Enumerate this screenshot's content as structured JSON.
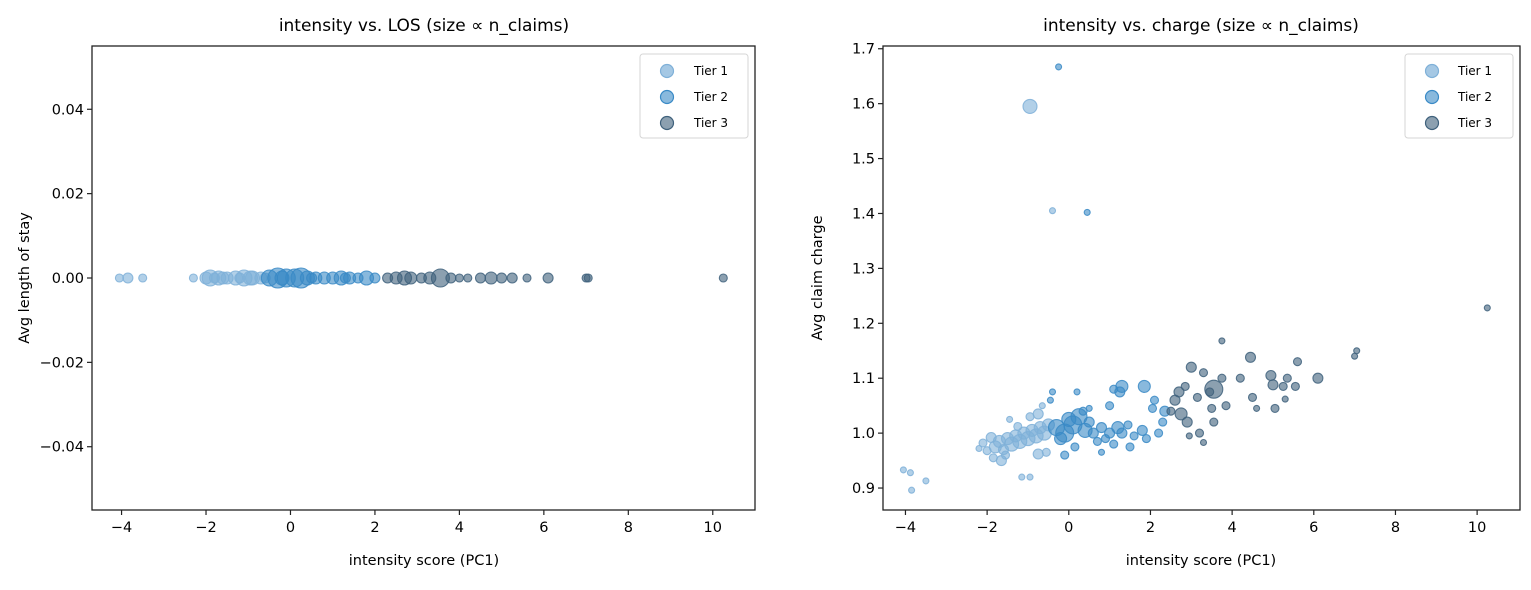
{
  "figure": {
    "colors": {
      "tier1": "#7fb0d8",
      "tier2": "#3a8ac6",
      "tier3": "#3f617c"
    }
  },
  "left": {
    "title": "intensity vs. LOS (size ∝ n_claims)",
    "xlabel": "intensity score (PC1)",
    "ylabel": "Avg length of stay",
    "xticks": [
      "−4",
      "−2",
      "0",
      "2",
      "4",
      "6",
      "8",
      "10"
    ],
    "yticks": [
      "0.04",
      "0.02",
      "0.00",
      "−0.02",
      "−0.04"
    ],
    "legend": [
      "Tier 1",
      "Tier 2",
      "Tier 3"
    ]
  },
  "right": {
    "title": "intensity vs. charge (size ∝ n_claims)",
    "xlabel": "intensity score (PC1)",
    "ylabel": "Avg claim charge",
    "xticks": [
      "−4",
      "−2",
      "0",
      "2",
      "4",
      "6",
      "8",
      "10"
    ],
    "yticks": [
      "1.7",
      "1.6",
      "1.5",
      "1.4",
      "1.3",
      "1.2",
      "1.1",
      "1.0",
      "0.9"
    ],
    "legend": [
      "Tier 1",
      "Tier 2",
      "Tier 3"
    ]
  },
  "chart_data": [
    {
      "type": "scatter",
      "title": "intensity vs. LOS (size ∝ n_claims)",
      "xlabel": "intensity score (PC1)",
      "ylabel": "Avg length of stay",
      "xlim": [
        -4.7,
        11.0
      ],
      "ylim": [
        -0.055,
        0.055
      ],
      "xticks": [
        -4,
        -2,
        0,
        2,
        4,
        6,
        8,
        10
      ],
      "yticks": [
        -0.04,
        -0.02,
        0.0,
        0.02,
        0.04
      ],
      "grid": false,
      "legend_position": "upper right",
      "size_encoding": "n_claims",
      "series": [
        {
          "name": "Tier 1",
          "color": "#7fb0d8",
          "points": [
            [
              -4.05,
              0,
              4
            ],
            [
              -3.85,
              0,
              5
            ],
            [
              -3.5,
              0,
              4
            ],
            [
              -2.3,
              0,
              4
            ],
            [
              -2.0,
              0,
              6
            ],
            [
              -1.9,
              0,
              8
            ],
            [
              -1.7,
              0,
              7
            ],
            [
              -1.5,
              0,
              6
            ],
            [
              -1.3,
              0,
              7
            ],
            [
              -1.1,
              0,
              8
            ],
            [
              -0.9,
              0,
              7
            ],
            [
              -0.7,
              0,
              6
            ],
            [
              -1.8,
              0,
              5
            ],
            [
              -1.6,
              0,
              6
            ],
            [
              -1.2,
              0,
              5
            ],
            [
              -0.95,
              0,
              7
            ],
            [
              -0.6,
              0,
              5
            ]
          ]
        },
        {
          "name": "Tier 2",
          "color": "#3a8ac6",
          "points": [
            [
              -0.5,
              0,
              8
            ],
            [
              -0.3,
              0,
              10
            ],
            [
              -0.1,
              0,
              9
            ],
            [
              0.1,
              0,
              9
            ],
            [
              0.25,
              0,
              10
            ],
            [
              0.4,
              0,
              7
            ],
            [
              0.6,
              0,
              6
            ],
            [
              0.8,
              0,
              6
            ],
            [
              1.0,
              0,
              6
            ],
            [
              1.2,
              0,
              7
            ],
            [
              1.4,
              0,
              6
            ],
            [
              1.6,
              0,
              5
            ],
            [
              1.8,
              0,
              7
            ],
            [
              2.0,
              0,
              5
            ],
            [
              -0.2,
              0,
              7
            ],
            [
              0.5,
              0,
              5
            ],
            [
              1.3,
              0,
              5
            ]
          ]
        },
        {
          "name": "Tier 3",
          "color": "#3f617c",
          "points": [
            [
              2.3,
              0,
              5
            ],
            [
              2.5,
              0,
              6
            ],
            [
              2.7,
              0,
              7
            ],
            [
              2.85,
              0,
              6
            ],
            [
              3.1,
              0,
              5
            ],
            [
              3.3,
              0,
              6
            ],
            [
              3.55,
              0,
              9
            ],
            [
              3.8,
              0,
              5
            ],
            [
              4.0,
              0,
              4
            ],
            [
              4.2,
              0,
              4
            ],
            [
              4.5,
              0,
              5
            ],
            [
              4.75,
              0,
              6
            ],
            [
              5.0,
              0,
              5
            ],
            [
              5.25,
              0,
              5
            ],
            [
              5.6,
              0,
              4
            ],
            [
              6.1,
              0,
              5
            ],
            [
              7.0,
              0,
              4
            ],
            [
              7.05,
              0,
              4
            ],
            [
              10.25,
              0,
              4
            ]
          ]
        }
      ]
    },
    {
      "type": "scatter",
      "title": "intensity vs. charge (size ∝ n_claims)",
      "xlabel": "intensity score (PC1)",
      "ylabel": "Avg claim charge",
      "xlim": [
        -4.55,
        11.05
      ],
      "ylim": [
        0.86,
        1.705
      ],
      "xticks": [
        -4,
        -2,
        0,
        2,
        4,
        6,
        8,
        10
      ],
      "yticks": [
        0.9,
        1.0,
        1.1,
        1.2,
        1.3,
        1.4,
        1.5,
        1.6,
        1.7
      ],
      "grid": false,
      "legend_position": "upper right",
      "size_encoding": "n_claims",
      "series": [
        {
          "name": "Tier 1",
          "color": "#7fb0d8",
          "points": [
            [
              -4.05,
              0.933,
              3
            ],
            [
              -3.88,
              0.928,
              3
            ],
            [
              -3.85,
              0.896,
              3
            ],
            [
              -3.5,
              0.913,
              3
            ],
            [
              -2.2,
              0.972,
              3
            ],
            [
              -2.1,
              0.982,
              4
            ],
            [
              -2.0,
              0.968,
              4
            ],
            [
              -1.9,
              0.992,
              5
            ],
            [
              -1.8,
              0.975,
              6
            ],
            [
              -1.7,
              0.985,
              6
            ],
            [
              -1.6,
              0.97,
              5
            ],
            [
              -1.5,
              0.99,
              6
            ],
            [
              -1.4,
              0.98,
              7
            ],
            [
              -1.3,
              0.995,
              6
            ],
            [
              -1.2,
              0.985,
              7
            ],
            [
              -1.1,
              1.0,
              6
            ],
            [
              -1.0,
              0.99,
              7
            ],
            [
              -0.9,
              1.005,
              6
            ],
            [
              -0.8,
              0.995,
              7
            ],
            [
              -0.7,
              1.01,
              6
            ],
            [
              -0.6,
              1.0,
              7
            ],
            [
              -0.5,
              1.015,
              6
            ],
            [
              -1.85,
              0.955,
              4
            ],
            [
              -1.55,
              0.96,
              4
            ],
            [
              -1.25,
              1.012,
              4
            ],
            [
              -1.45,
              1.025,
              3
            ],
            [
              -0.95,
              1.03,
              4
            ],
            [
              -0.75,
              1.035,
              5
            ],
            [
              -1.65,
              0.95,
              5
            ],
            [
              -1.15,
              0.92,
              3
            ],
            [
              -0.95,
              0.92,
              3
            ],
            [
              -0.65,
              1.05,
              3
            ],
            [
              -0.95,
              1.595,
              7
            ],
            [
              -0.4,
              1.405,
              3
            ],
            [
              -0.75,
              0.962,
              5
            ],
            [
              -0.55,
              0.965,
              4
            ]
          ]
        },
        {
          "name": "Tier 2",
          "color": "#3a8ac6",
          "points": [
            [
              -0.3,
              1.01,
              8
            ],
            [
              -0.1,
              1.0,
              9
            ],
            [
              0.1,
              1.015,
              9
            ],
            [
              0.25,
              1.03,
              8
            ],
            [
              0.4,
              1.005,
              7
            ],
            [
              -0.2,
              0.99,
              6
            ],
            [
              0.0,
              1.025,
              7
            ],
            [
              0.5,
              1.02,
              5
            ],
            [
              0.6,
              1.0,
              5
            ],
            [
              0.8,
              1.01,
              5
            ],
            [
              1.0,
              1.0,
              5
            ],
            [
              1.2,
              1.01,
              6
            ],
            [
              1.3,
              1.0,
              5
            ],
            [
              1.45,
              1.015,
              4
            ],
            [
              1.6,
              0.995,
              4
            ],
            [
              1.8,
              1.005,
              5
            ],
            [
              1.9,
              0.99,
              4
            ],
            [
              0.7,
              0.985,
              4
            ],
            [
              0.9,
              0.99,
              4
            ],
            [
              1.1,
              0.98,
              4
            ],
            [
              1.5,
              0.975,
              4
            ],
            [
              -0.4,
              1.075,
              3
            ],
            [
              -0.45,
              1.06,
              3
            ],
            [
              0.2,
              1.075,
              3
            ],
            [
              0.5,
              1.045,
              3
            ],
            [
              0.35,
              1.04,
              4
            ],
            [
              1.1,
              1.08,
              4
            ],
            [
              1.25,
              1.075,
              5
            ],
            [
              1.3,
              1.085,
              6
            ],
            [
              1.85,
              1.085,
              6
            ],
            [
              2.1,
              1.06,
              4
            ],
            [
              2.05,
              1.045,
              4
            ],
            [
              2.35,
              1.04,
              5
            ],
            [
              2.3,
              1.02,
              4
            ],
            [
              2.2,
              1.0,
              4
            ],
            [
              -0.25,
              1.667,
              3
            ],
            [
              0.45,
              1.402,
              3
            ],
            [
              1.0,
              1.05,
              4
            ],
            [
              0.15,
              0.975,
              4
            ],
            [
              -0.1,
              0.96,
              4
            ],
            [
              0.8,
              0.965,
              3
            ]
          ]
        },
        {
          "name": "Tier 3",
          "color": "#3f617c",
          "points": [
            [
              2.5,
              1.04,
              4
            ],
            [
              2.6,
              1.06,
              5
            ],
            [
              2.7,
              1.075,
              5
            ],
            [
              2.85,
              1.085,
              4
            ],
            [
              2.9,
              1.02,
              5
            ],
            [
              2.75,
              1.035,
              6
            ],
            [
              3.0,
              1.12,
              5
            ],
            [
              3.15,
              1.065,
              4
            ],
            [
              3.3,
              1.11,
              4
            ],
            [
              3.45,
              1.075,
              4
            ],
            [
              3.55,
              1.08,
              9
            ],
            [
              3.75,
              1.1,
              4
            ],
            [
              3.2,
              1.0,
              4
            ],
            [
              3.5,
              1.045,
              4
            ],
            [
              3.55,
              1.02,
              4
            ],
            [
              3.75,
              1.168,
              3
            ],
            [
              3.85,
              1.05,
              4
            ],
            [
              4.2,
              1.1,
              4
            ],
            [
              4.45,
              1.138,
              5
            ],
            [
              4.5,
              1.065,
              4
            ],
            [
              4.6,
              1.045,
              3
            ],
            [
              4.95,
              1.105,
              5
            ],
            [
              5.0,
              1.088,
              5
            ],
            [
              5.25,
              1.085,
              4
            ],
            [
              5.35,
              1.1,
              4
            ],
            [
              5.6,
              1.13,
              4
            ],
            [
              5.55,
              1.085,
              4
            ],
            [
              6.1,
              1.1,
              5
            ],
            [
              5.05,
              1.045,
              4
            ],
            [
              5.3,
              1.062,
              3
            ],
            [
              2.95,
              0.995,
              3
            ],
            [
              3.3,
              0.983,
              3
            ],
            [
              7.0,
              1.14,
              3
            ],
            [
              7.05,
              1.15,
              3
            ],
            [
              10.25,
              1.228,
              3
            ]
          ]
        }
      ]
    }
  ]
}
